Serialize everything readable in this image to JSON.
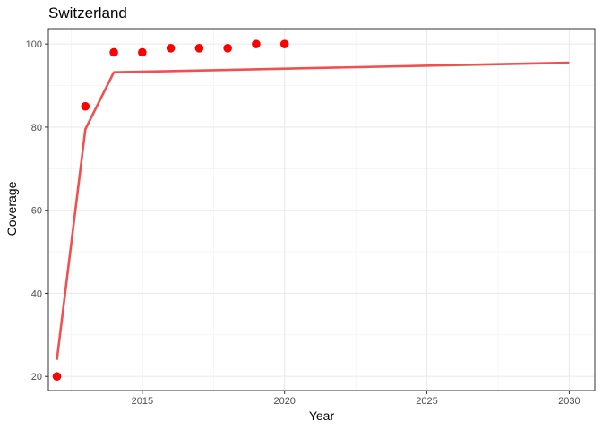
{
  "chart_data": {
    "type": "scatter",
    "title": "Switzerland",
    "xlabel": "Year",
    "ylabel": "Coverage",
    "xlim": [
      2011.7,
      2030.9
    ],
    "ylim": [
      16.6,
      103.7
    ],
    "x_ticks": [
      2015,
      2020,
      2025,
      2030
    ],
    "y_ticks": [
      20,
      40,
      60,
      80,
      100
    ],
    "grid": true,
    "legend": "none",
    "series": [
      {
        "type": "scatter",
        "color": "#ff0000",
        "x": [
          2012,
          2013,
          2014,
          2015,
          2016,
          2017,
          2018,
          2019,
          2020
        ],
        "y": [
          20,
          85,
          98,
          98,
          99,
          99,
          99,
          100,
          100
        ]
      },
      {
        "type": "line",
        "color": "#f05050",
        "x": [
          2012,
          2013,
          2014,
          2030
        ],
        "y": [
          24,
          79.5,
          93.2,
          95.5
        ]
      }
    ]
  }
}
